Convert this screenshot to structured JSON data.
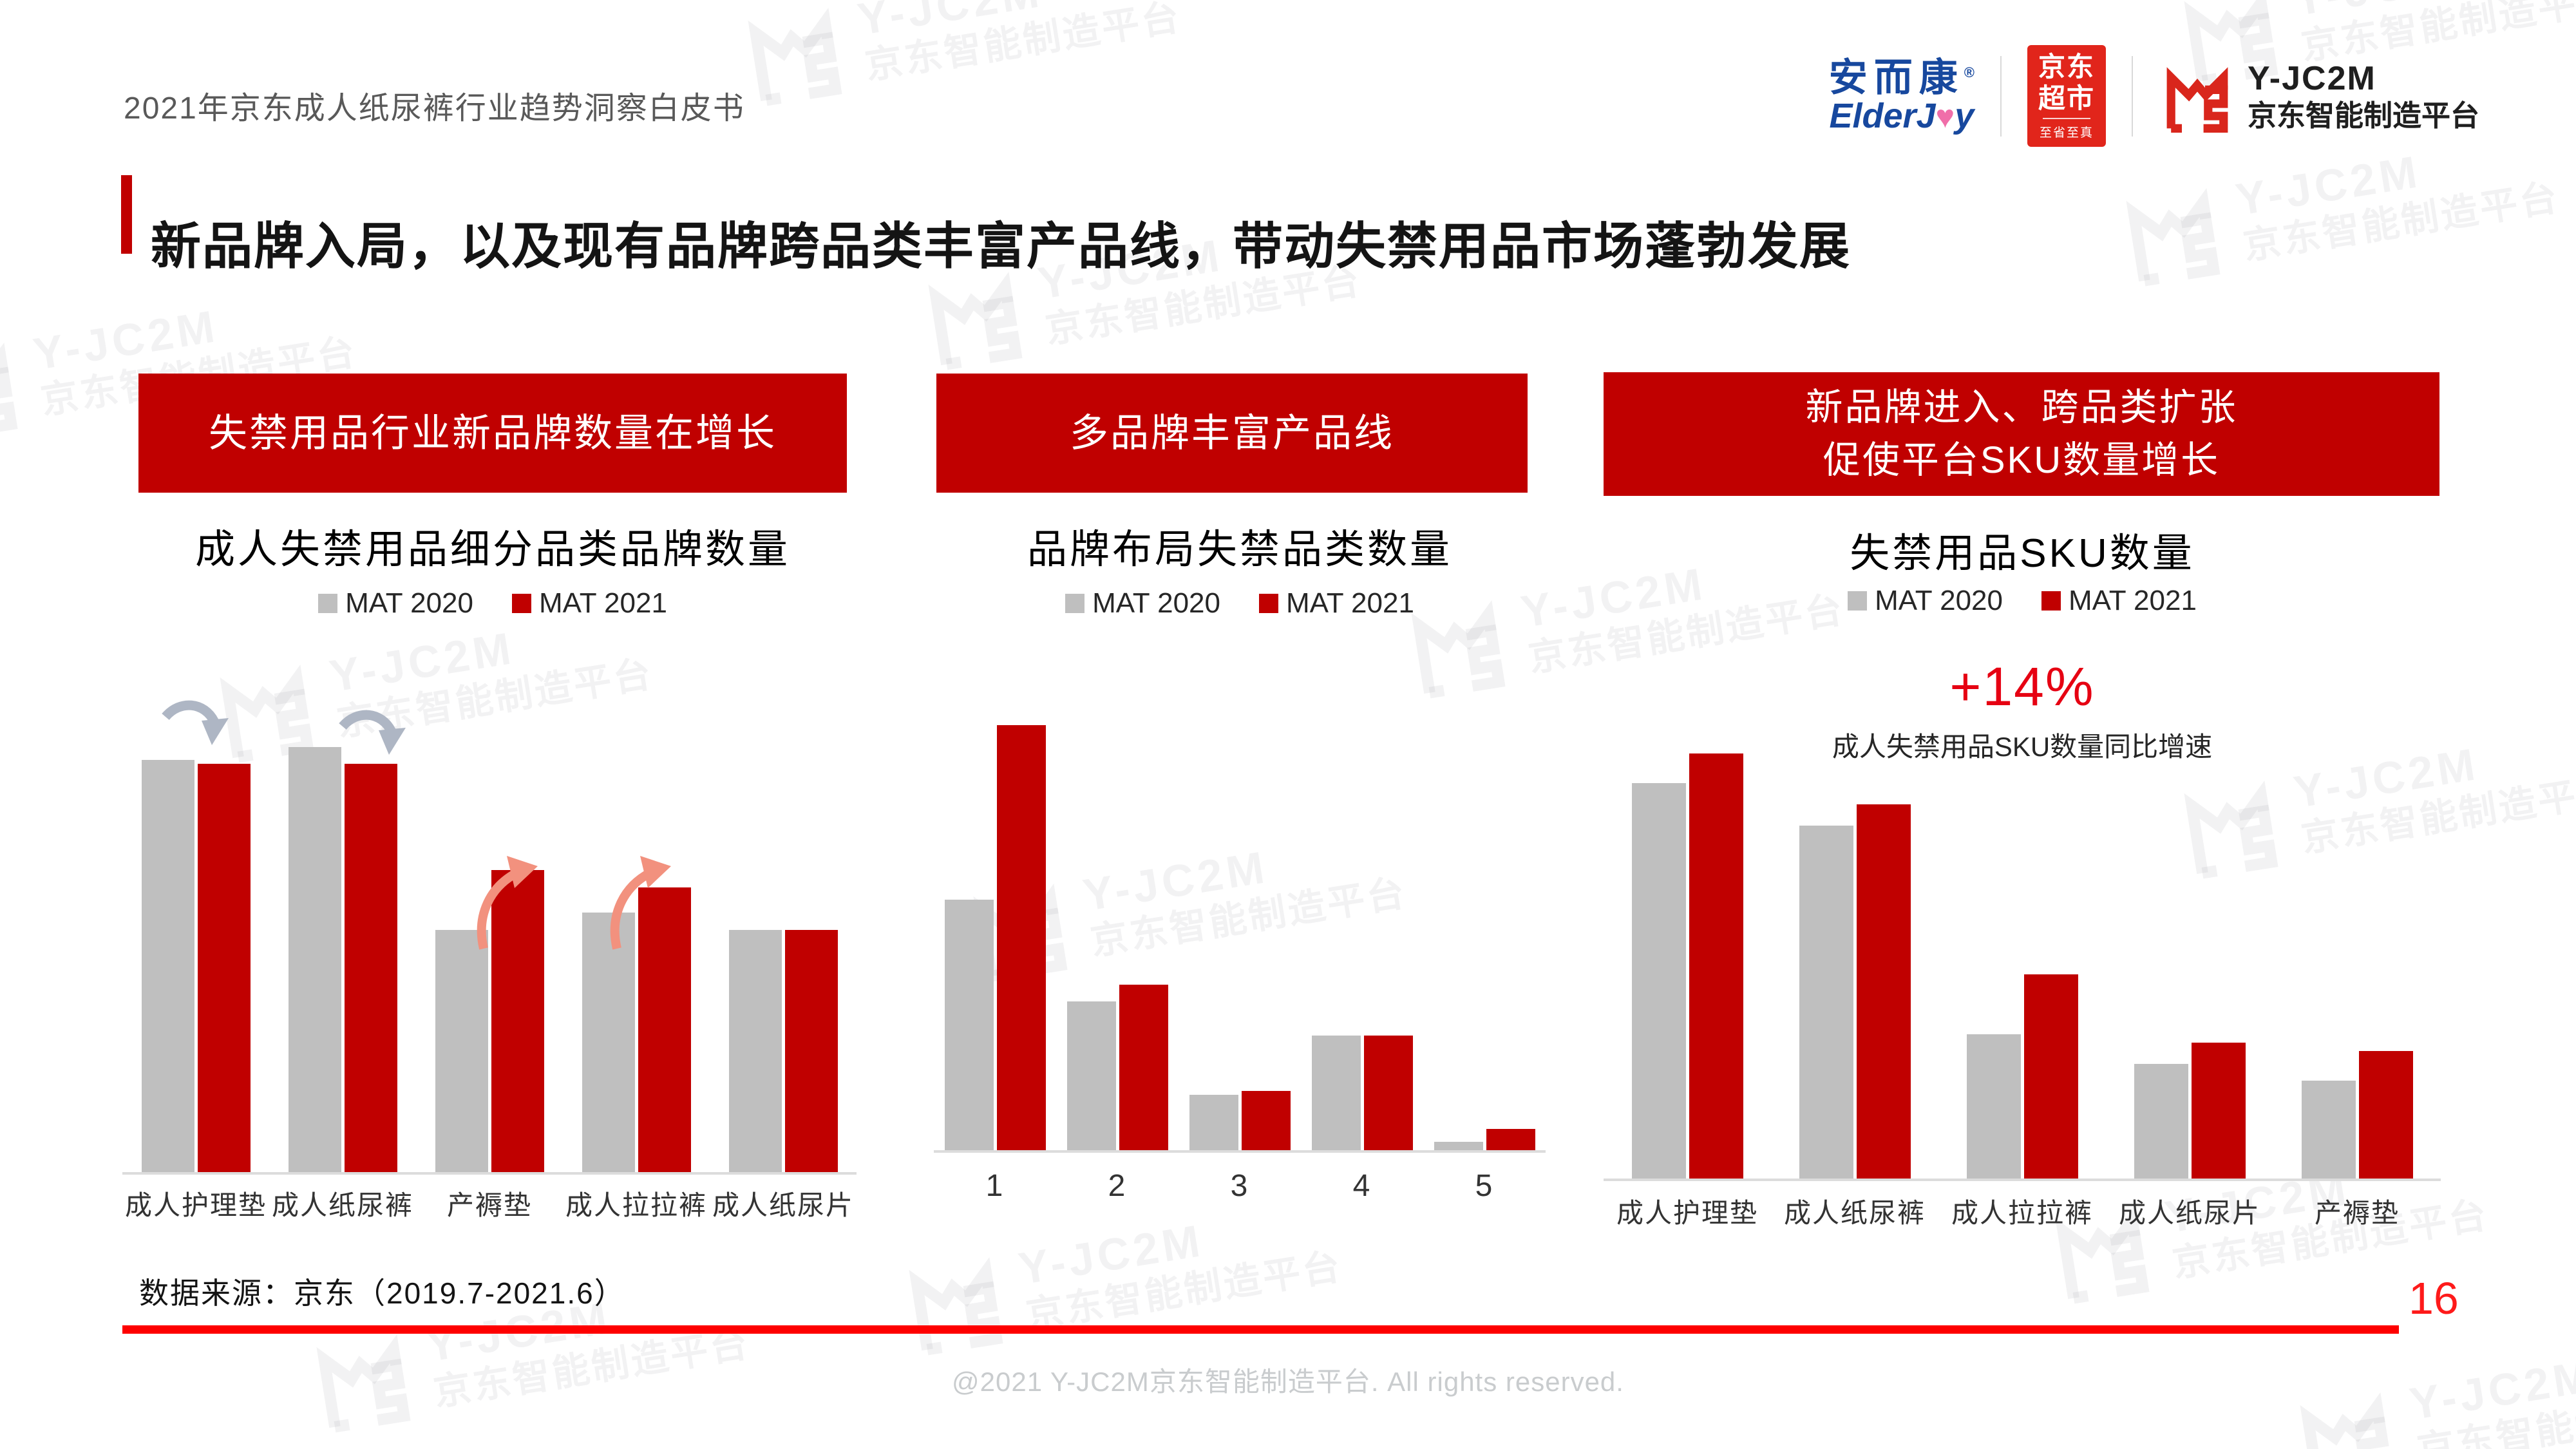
{
  "page": {
    "header_label": "2021年京东成人纸尿裤行业趋势洞察白皮书",
    "title": "新品牌入局，以及现有品牌跨品类丰富产品线，带动失禁用品市场蓬勃发展",
    "source_note": "数据来源：京东（2019.7-2021.6）",
    "page_number": "16",
    "copyright": "@2021 Y-JC2M京东智能制造平台. All rights reserved."
  },
  "logos": {
    "elderjoy_cn": "安而康",
    "elderjoy_reg": "®",
    "elderjoy_en_left": "ElderJ",
    "elderjoy_heart": "♥",
    "elderjoy_en_right": "y",
    "jd_market_line1": "京东",
    "jd_market_line2": "超市",
    "jd_market_slogan": "至省至真",
    "yjc2m_name": "Y-JC2M",
    "yjc2m_subtitle": "京东智能制造平台"
  },
  "watermark": {
    "brand": "Y-JC2M",
    "subtitle": "京东智能制造平台"
  },
  "legend": {
    "items": [
      {
        "label": "MAT 2020",
        "color": "#BFBFBF"
      },
      {
        "label": "MAT 2021",
        "color": "#C00000"
      }
    ]
  },
  "panels": [
    {
      "banner": "失禁用品行业新品牌数量在增长"
    },
    {
      "banner": "多品牌丰富产品线"
    },
    {
      "banner_line1": "新品牌进入、跨品类扩张",
      "banner_line2": "促使平台SKU数量增长"
    }
  ],
  "colors": {
    "accent_red": "#C00000",
    "bright_red": "#FE0000",
    "bar_gray": "#BFBFBF",
    "callout_red": "#E60012",
    "jd_red": "#E1251B",
    "elderjoy_blue": "#17489E",
    "elderjoy_pink": "#F06EA9",
    "arrow_gray": "#AEB6C4",
    "arrow_salmon": "#F2917E"
  },
  "chart_data": [
    {
      "type": "bar",
      "title": "成人失禁用品细分品类品牌数量",
      "categories": [
        "成人护理垫",
        "成人纸尿裤",
        "产褥垫",
        "成人拉拉裤",
        "成人纸尿片"
      ],
      "series": [
        {
          "name": "MAT 2020",
          "color": "#BFBFBF",
          "values": [
            97,
            100,
            57,
            61,
            57
          ]
        },
        {
          "name": "MAT 2021",
          "color": "#C00000",
          "values": [
            96,
            96,
            71,
            67,
            57
          ]
        }
      ],
      "ylim": [
        0,
        100
      ],
      "ylabel": "",
      "xlabel": "",
      "grid": false,
      "legend_position": "top",
      "value_scale": "relative index (axis unlabeled in source)",
      "annotations": [
        "decline arrow over 成人护理垫 (gray)",
        "decline arrow over 成人纸尿裤 (gray)",
        "growth arrow over 产褥垫 (salmon)",
        "growth arrow over 成人拉拉裤 (salmon)"
      ]
    },
    {
      "type": "bar",
      "title": "品牌布局失禁品类数量",
      "categories": [
        "1",
        "2",
        "3",
        "4",
        "5"
      ],
      "series": [
        {
          "name": "MAT 2020",
          "color": "#BFBFBF",
          "values": [
            59,
            35,
            13,
            27,
            2
          ]
        },
        {
          "name": "MAT 2021",
          "color": "#C00000",
          "values": [
            100,
            39,
            14,
            27,
            5
          ]
        }
      ],
      "ylim": [
        0,
        100
      ],
      "ylabel": "",
      "xlabel": "",
      "grid": false,
      "legend_position": "top",
      "value_scale": "relative index (axis unlabeled in source)"
    },
    {
      "type": "bar",
      "title": "失禁用品SKU数量",
      "categories": [
        "成人护理垫",
        "成人纸尿裤",
        "成人拉拉裤",
        "成人纸尿片",
        "产褥垫"
      ],
      "series": [
        {
          "name": "MAT 2020",
          "color": "#BFBFBF",
          "values": [
            93,
            83,
            34,
            27,
            23
          ]
        },
        {
          "name": "MAT 2021",
          "color": "#C00000",
          "values": [
            100,
            88,
            48,
            32,
            30
          ]
        }
      ],
      "ylim": [
        0,
        100
      ],
      "ylabel": "",
      "xlabel": "",
      "grid": false,
      "legend_position": "top",
      "value_scale": "relative index (axis unlabeled in source)",
      "callout": {
        "value": "+14%",
        "label": "成人失禁用品SKU数量同比增速"
      }
    }
  ]
}
